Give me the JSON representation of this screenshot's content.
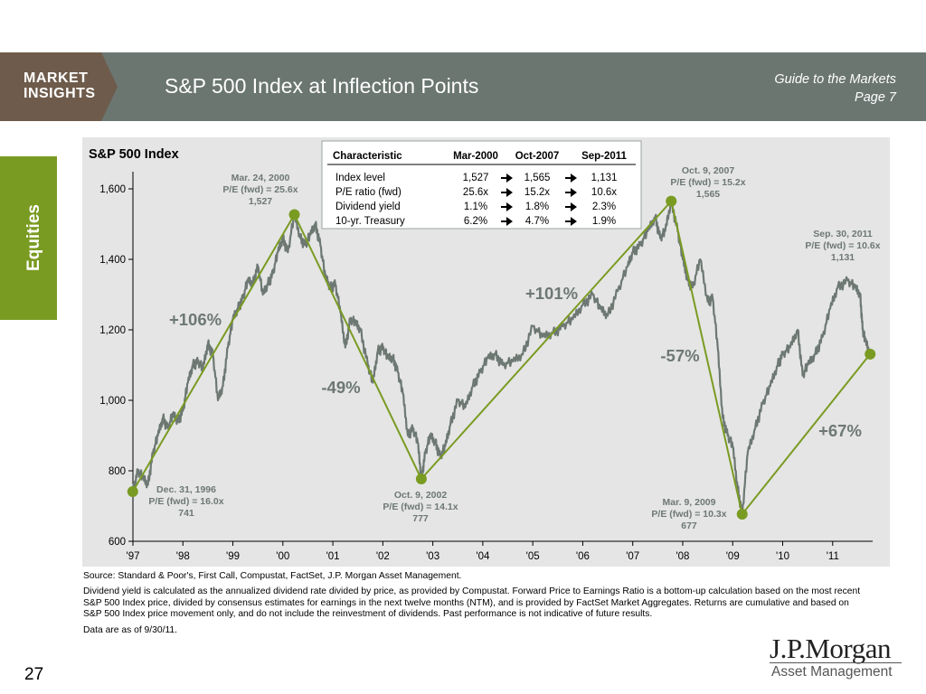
{
  "header": {
    "badge_line1": "MARKET",
    "badge_line2": "INSIGHTS",
    "title": "S&P 500 Index at Inflection Points",
    "guide_line1": "Guide to the Markets",
    "guide_line2": "Page 7",
    "bar_color": "#6b7671",
    "badge_color": "#6e5b4b"
  },
  "sidebar": {
    "label": "Equities",
    "color": "#7a9b22"
  },
  "chart_data": {
    "type": "line",
    "title": "S&P 500 Index",
    "xlabel": "",
    "ylabel": "",
    "xlim": [
      1997.0,
      2011.8
    ],
    "ylim": [
      600,
      1700
    ],
    "yticks": [
      600,
      800,
      1000,
      1200,
      1400,
      1600
    ],
    "ytick_labels": [
      "600",
      "800",
      "1,000",
      "1,200",
      "1,400",
      "1,600"
    ],
    "xticks": [
      1997,
      1998,
      1999,
      2000,
      2001,
      2002,
      2003,
      2004,
      2005,
      2006,
      2007,
      2008,
      2009,
      2010,
      2011
    ],
    "xtick_labels": [
      "'97",
      "'98",
      "'99",
      "'00",
      "'01",
      "'02",
      "'03",
      "'04",
      "'05",
      "'06",
      "'07",
      "'08",
      "'09",
      "'10",
      "'11"
    ],
    "grid": false,
    "colors": {
      "index": "#6d7873",
      "trend": "#7a9b22"
    },
    "series": [
      {
        "name": "S&P 500 Index",
        "x": [
          1997.0,
          1997.1,
          1997.2,
          1997.3,
          1997.4,
          1997.5,
          1997.6,
          1997.7,
          1997.8,
          1997.9,
          1998.0,
          1998.1,
          1998.2,
          1998.3,
          1998.4,
          1998.5,
          1998.6,
          1998.7,
          1998.8,
          1998.9,
          1999.0,
          1999.1,
          1999.2,
          1999.3,
          1999.4,
          1999.5,
          1999.6,
          1999.7,
          1999.8,
          1999.9,
          2000.0,
          2000.1,
          2000.23,
          2000.35,
          2000.45,
          2000.55,
          2000.65,
          2000.75,
          2000.85,
          2000.95,
          2001.05,
          2001.15,
          2001.25,
          2001.35,
          2001.45,
          2001.55,
          2001.7,
          2001.8,
          2001.9,
          2002.0,
          2002.1,
          2002.2,
          2002.3,
          2002.4,
          2002.5,
          2002.6,
          2002.7,
          2002.77,
          2002.85,
          2002.95,
          2003.05,
          2003.15,
          2003.25,
          2003.35,
          2003.5,
          2003.65,
          2003.8,
          2003.95,
          2004.1,
          2004.25,
          2004.4,
          2004.6,
          2004.8,
          2005.0,
          2005.2,
          2005.4,
          2005.6,
          2005.8,
          2006.0,
          2006.2,
          2006.35,
          2006.5,
          2006.7,
          2006.9,
          2007.0,
          2007.15,
          2007.3,
          2007.45,
          2007.55,
          2007.65,
          2007.77,
          2007.9,
          2008.0,
          2008.1,
          2008.2,
          2008.35,
          2008.5,
          2008.6,
          2008.7,
          2008.8,
          2008.9,
          2009.0,
          2009.1,
          2009.19,
          2009.3,
          2009.45,
          2009.6,
          2009.75,
          2009.9,
          2010.0,
          2010.15,
          2010.3,
          2010.4,
          2010.5,
          2010.65,
          2010.8,
          2010.95,
          2011.1,
          2011.3,
          2011.45,
          2011.55,
          2011.6,
          2011.65,
          2011.75
        ],
        "y": [
          741,
          800,
          780,
          760,
          850,
          900,
          950,
          920,
          960,
          940,
          970,
          1050,
          1100,
          1110,
          1090,
          1160,
          1130,
          1000,
          1040,
          1150,
          1230,
          1260,
          1290,
          1340,
          1330,
          1380,
          1300,
          1330,
          1360,
          1420,
          1460,
          1420,
          1527,
          1460,
          1440,
          1470,
          1500,
          1440,
          1350,
          1320,
          1330,
          1250,
          1150,
          1230,
          1220,
          1200,
          1100,
          1050,
          1140,
          1150,
          1120,
          1120,
          1080,
          1020,
          900,
          920,
          880,
          777,
          850,
          900,
          880,
          840,
          870,
          930,
          1000,
          980,
          1040,
          1080,
          1120,
          1130,
          1100,
          1110,
          1130,
          1210,
          1180,
          1190,
          1210,
          1230,
          1270,
          1300,
          1260,
          1240,
          1310,
          1380,
          1420,
          1440,
          1480,
          1520,
          1460,
          1480,
          1565,
          1480,
          1400,
          1340,
          1320,
          1400,
          1280,
          1290,
          1150,
          950,
          900,
          870,
          750,
          677,
          850,
          920,
          990,
          1040,
          1100,
          1130,
          1150,
          1200,
          1070,
          1100,
          1130,
          1180,
          1260,
          1320,
          1340,
          1320,
          1300,
          1200,
          1170,
          1131
        ]
      }
    ],
    "inflection_points": [
      {
        "x": 1996.996,
        "y": 741
      },
      {
        "x": 2000.23,
        "y": 1527
      },
      {
        "x": 2002.77,
        "y": 777
      },
      {
        "x": 2007.77,
        "y": 1565
      },
      {
        "x": 2009.19,
        "y": 677
      },
      {
        "x": 2011.75,
        "y": 1131
      }
    ],
    "point_labels": [
      {
        "lines": [
          "Dec. 31, 1996",
          "P/E (fwd) = 16.0x",
          "741"
        ]
      },
      {
        "lines": [
          "Mar. 24, 2000",
          "P/E (fwd) = 25.6x",
          "1,527"
        ]
      },
      {
        "lines": [
          "Oct. 9, 2002",
          "P/E (fwd) = 14.1x",
          "777"
        ]
      },
      {
        "lines": [
          "Oct. 9, 2007",
          "P/E (fwd) = 15.2x",
          "1,565"
        ]
      },
      {
        "lines": [
          "Mar. 9, 2009",
          "P/E (fwd) = 10.3x",
          "677"
        ]
      },
      {
        "lines": [
          "Sep. 30, 2011",
          "P/E (fwd) = 10.6x",
          "1,131"
        ]
      }
    ],
    "change_labels": [
      "+106%",
      "-49%",
      "+101%",
      "-57%",
      "+67%"
    ],
    "table": {
      "headers": [
        "Characteristic",
        "Mar-2000",
        "Oct-2007",
        "Sep-2011"
      ],
      "rows": [
        [
          "Index level",
          "1,527",
          "1,565",
          "1,131"
        ],
        [
          "P/E ratio (fwd)",
          "25.6x",
          "15.2x",
          "10.6x"
        ],
        [
          "Dividend yield",
          "1.1%",
          "1.8%",
          "2.3%"
        ],
        [
          "10-yr. Treasury",
          "6.2%",
          "4.7%",
          "1.9%"
        ]
      ]
    }
  },
  "footnotes": {
    "source": "Source: Standard & Poor's, First Call, Compustat, FactSet, J.P. Morgan Asset Management.",
    "methodology": "Dividend yield is calculated as the annualized dividend rate divided by price, as provided by Compustat. Forward Price to Earnings Ratio is a bottom-up calculation based on the most recent S&P 500 Index price, divided by consensus estimates for earnings in the next twelve months (NTM), and is provided by FactSet Market Aggregates. Returns are cumulative and based on S&P 500 Index price movement only, and do not include the reinvestment of dividends. Past performance is not indicative of future results.",
    "asof": "Data are as of 9/30/11."
  },
  "page_number": "27",
  "logo": {
    "name": "J.P.Morgan",
    "sub": "Asset Management"
  }
}
